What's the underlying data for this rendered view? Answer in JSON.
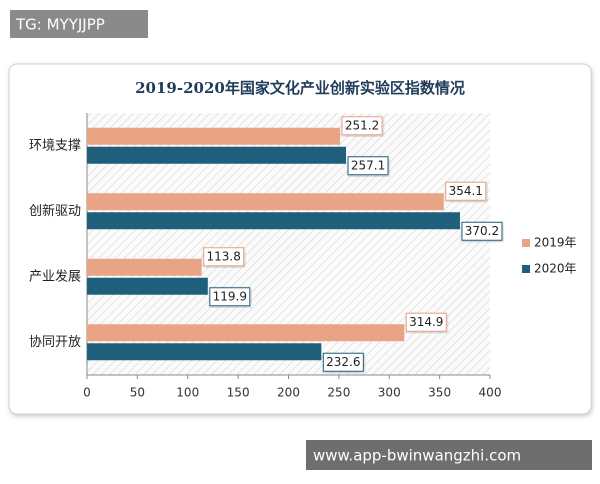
{
  "top_tag": "TG: MYYJJPP",
  "footer_url": "www.app-bwinwangzhi.com",
  "chart_data": {
    "type": "hbar",
    "title": "2019-2020年国家文化产业创新实验区指数情况",
    "categories": [
      "环境支撑",
      "创新驱动",
      "产业发展",
      "协同开放"
    ],
    "series": [
      {
        "name": "2019年",
        "color": "#e9a385",
        "values": [
          251.2,
          354.1,
          113.8,
          314.9
        ]
      },
      {
        "name": "2020年",
        "color": "#1f5f7c",
        "values": [
          257.1,
          370.2,
          119.9,
          232.6
        ]
      }
    ],
    "xlim": [
      0,
      400
    ],
    "xticks": [
      0,
      50,
      100,
      150,
      200,
      250,
      300,
      350,
      400
    ],
    "grid": false,
    "legend": "right"
  }
}
